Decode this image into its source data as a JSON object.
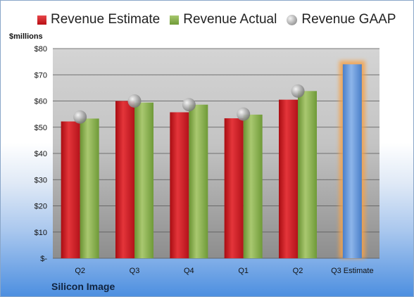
{
  "company": "Silicon Image",
  "chart_data": {
    "type": "bar",
    "ylabel": "$millions",
    "ylim": [
      0,
      80
    ],
    "yticks": [
      0,
      10,
      20,
      30,
      40,
      50,
      60,
      70,
      80
    ],
    "ytick_labels": [
      "$-",
      "$10",
      "$20",
      "$30",
      "$40",
      "$50",
      "$60",
      "$70",
      "$80"
    ],
    "categories": [
      "Q2",
      "Q3",
      "Q4",
      "Q1",
      "Q2",
      "Q3 Estimate"
    ],
    "legend_position": "top",
    "grid": true,
    "series": [
      {
        "name": "Revenue Estimate",
        "kind": "bar",
        "color": "#c8161c",
        "values": [
          52.2,
          60.0,
          55.7,
          53.4,
          60.5,
          null
        ]
      },
      {
        "name": "Revenue Actual",
        "kind": "bar",
        "color": "#7fa644",
        "values": [
          53.3,
          59.4,
          58.6,
          54.8,
          63.8,
          null
        ]
      },
      {
        "name": "Revenue GAAP",
        "kind": "marker",
        "color": "#a0a0a0",
        "values": [
          53.9,
          60.0,
          58.6,
          55.0,
          63.8,
          null
        ]
      }
    ],
    "highlight": {
      "category": "Q3 Estimate",
      "value": 74.0,
      "color": "#5a8fd6"
    }
  }
}
